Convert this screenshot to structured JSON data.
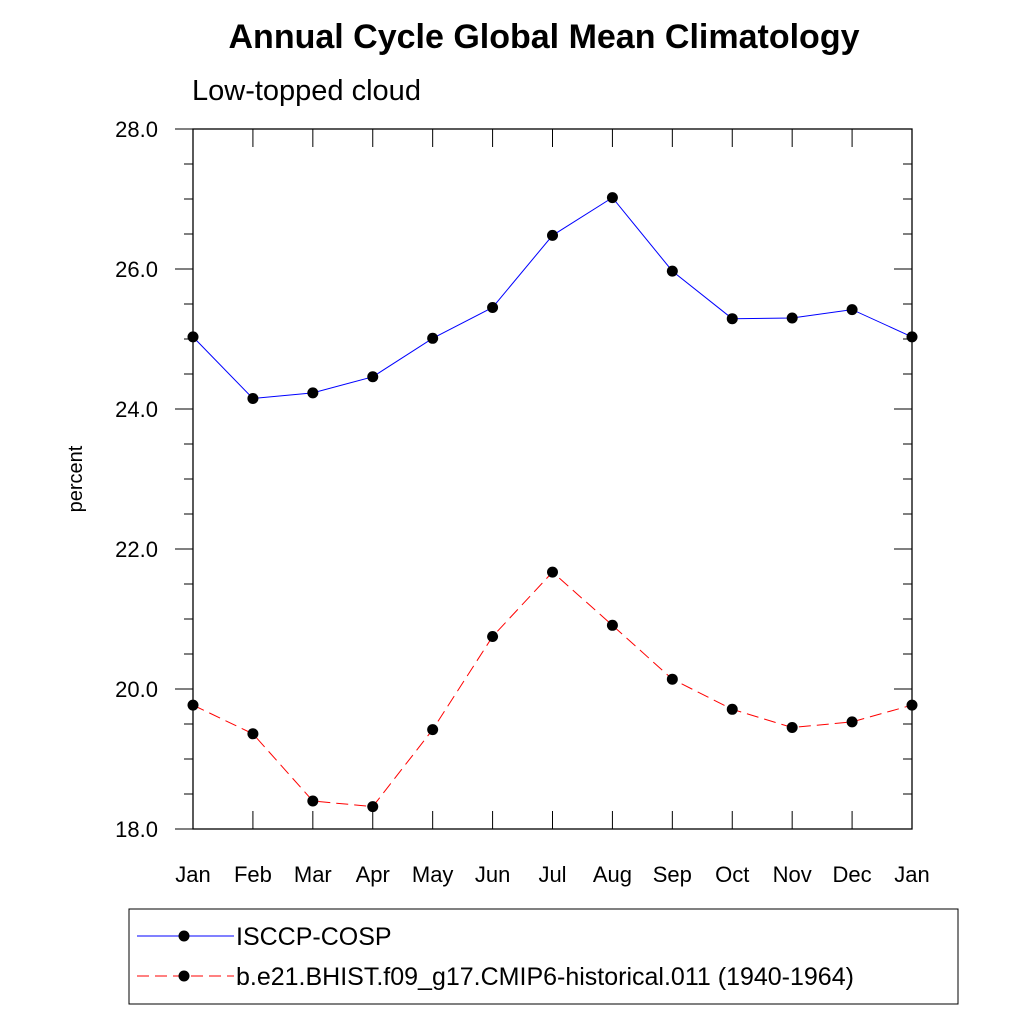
{
  "chart_data": {
    "type": "line",
    "title": "Annual Cycle Global Mean Climatology",
    "subtitle": "Low-topped cloud",
    "xlabel": "",
    "ylabel": "percent",
    "categories": [
      "Jan",
      "Feb",
      "Mar",
      "Apr",
      "May",
      "Jun",
      "Jul",
      "Aug",
      "Sep",
      "Oct",
      "Nov",
      "Dec",
      "Jan"
    ],
    "ylim": [
      18.0,
      28.0
    ],
    "ytick_labels": [
      "18.0",
      "20.0",
      "22.0",
      "24.0",
      "26.0",
      "28.0"
    ],
    "grid": false,
    "legend_position": "bottom",
    "series": [
      {
        "name": "ISCCP-COSP",
        "color": "#0000ff",
        "line_style": "solid",
        "marker": "filled-circle",
        "values": [
          25.03,
          24.15,
          24.23,
          24.46,
          25.01,
          25.45,
          26.48,
          27.02,
          25.97,
          25.29,
          25.3,
          25.42,
          25.03
        ]
      },
      {
        "name": "b.e21.BHIST.f09_g17.CMIP6-historical.011 (1940-1964)",
        "color": "#ff0000",
        "line_style": "dashed",
        "marker": "filled-circle",
        "values": [
          19.77,
          19.36,
          18.4,
          18.32,
          19.42,
          20.75,
          21.67,
          20.91,
          20.14,
          19.71,
          19.45,
          19.53,
          19.77
        ]
      }
    ]
  }
}
